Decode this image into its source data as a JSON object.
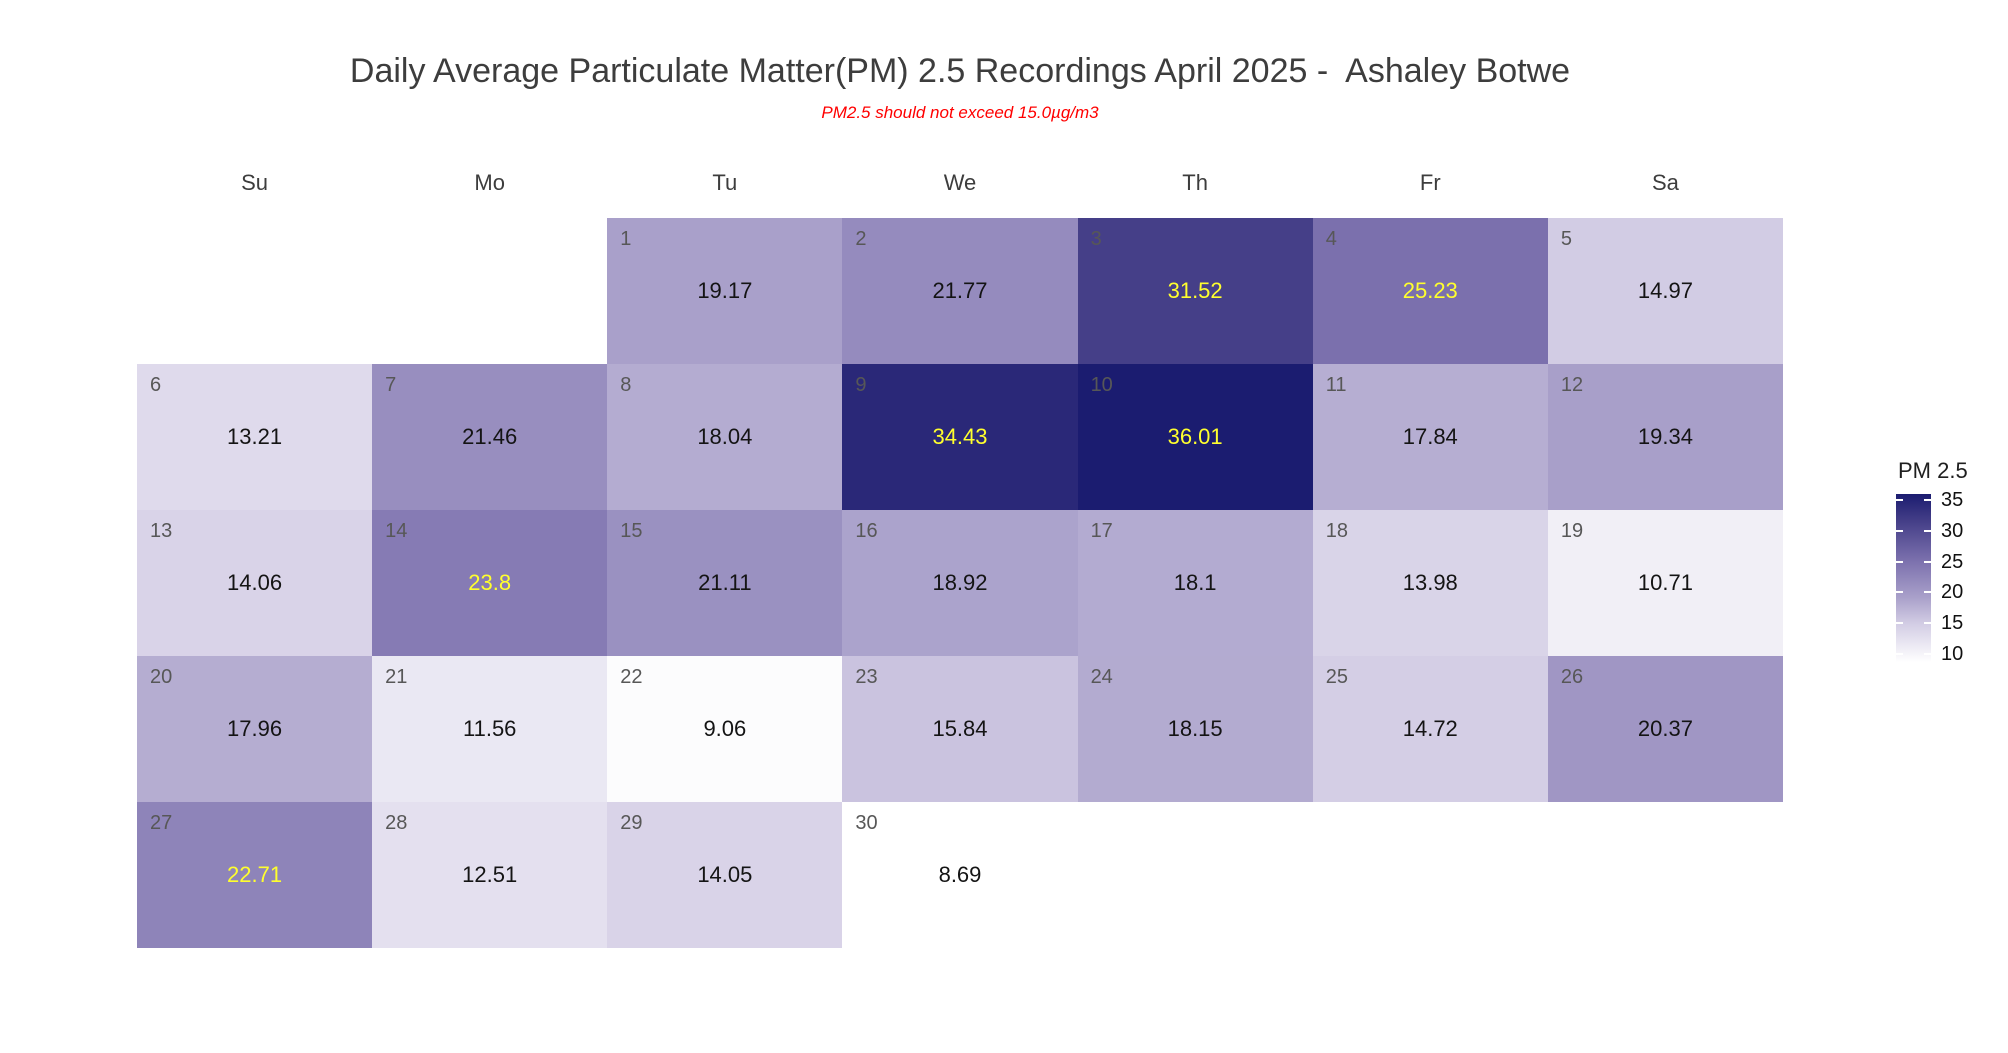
{
  "page": {
    "title": "Daily Average Particulate Matter(PM) 2.5 Recordings April 2025 -  Ashaley Botwe",
    "subtitle": "PM2.5 should not exceed 15.0µg/m3"
  },
  "colors": {
    "title_text": "#3d3d3d",
    "subtitle_text": "#ff0000",
    "weekday_text": "#3d3d3d",
    "day_number_text": "#575757",
    "value_text_dark": "#141414",
    "value_text_highlight": "#ffff2e",
    "background": "#ffffff"
  },
  "chart_data": {
    "type": "heatmap",
    "title": "Daily Average Particulate Matter(PM) 2.5 Recordings April 2025 -  Ashaley Botwe",
    "subtitle": "PM2.5 should not exceed 15.0µg/m3",
    "month": "April 2025",
    "location": "Ashaley Botwe",
    "unit": "µg/m3",
    "threshold_note_value": 15.0,
    "weekday_headers": [
      "Su",
      "Mo",
      "Tu",
      "We",
      "Th",
      "Fr",
      "Sa"
    ],
    "first_day_column": 2,
    "value_min": 8.69,
    "value_max": 36.01,
    "highlight_threshold": 22.5,
    "days": [
      {
        "day": 1,
        "value": 19.17
      },
      {
        "day": 2,
        "value": 21.77
      },
      {
        "day": 3,
        "value": 31.52
      },
      {
        "day": 4,
        "value": 25.23
      },
      {
        "day": 5,
        "value": 14.97
      },
      {
        "day": 6,
        "value": 13.21
      },
      {
        "day": 7,
        "value": 21.46
      },
      {
        "day": 8,
        "value": 18.04
      },
      {
        "day": 9,
        "value": 34.43
      },
      {
        "day": 10,
        "value": 36.01
      },
      {
        "day": 11,
        "value": 17.84
      },
      {
        "day": 12,
        "value": 19.34
      },
      {
        "day": 13,
        "value": 14.06
      },
      {
        "day": 14,
        "value": 23.8
      },
      {
        "day": 15,
        "value": 21.11
      },
      {
        "day": 16,
        "value": 18.92
      },
      {
        "day": 17,
        "value": 18.1
      },
      {
        "day": 18,
        "value": 13.98
      },
      {
        "day": 19,
        "value": 10.71
      },
      {
        "day": 20,
        "value": 17.96
      },
      {
        "day": 21,
        "value": 11.56
      },
      {
        "day": 22,
        "value": 9.06
      },
      {
        "day": 23,
        "value": 15.84
      },
      {
        "day": 24,
        "value": 18.15
      },
      {
        "day": 25,
        "value": 14.72
      },
      {
        "day": 26,
        "value": 20.37
      },
      {
        "day": 27,
        "value": 22.71
      },
      {
        "day": 28,
        "value": 12.51
      },
      {
        "day": 29,
        "value": 14.05
      },
      {
        "day": 30,
        "value": 8.69
      }
    ],
    "colormap_stops": [
      {
        "value": 8.69,
        "color": "#ffffff"
      },
      {
        "value": 14.97,
        "color": "#d2cce4"
      },
      {
        "value": 19.17,
        "color": "#a9a0ca"
      },
      {
        "value": 25.23,
        "color": "#7b70ad"
      },
      {
        "value": 31.52,
        "color": "#453f88"
      },
      {
        "value": 36.01,
        "color": "#1b1c70"
      }
    ],
    "legend": {
      "title": "PM 2.5",
      "ticks": [
        35,
        30,
        25,
        20,
        15,
        10
      ]
    }
  }
}
